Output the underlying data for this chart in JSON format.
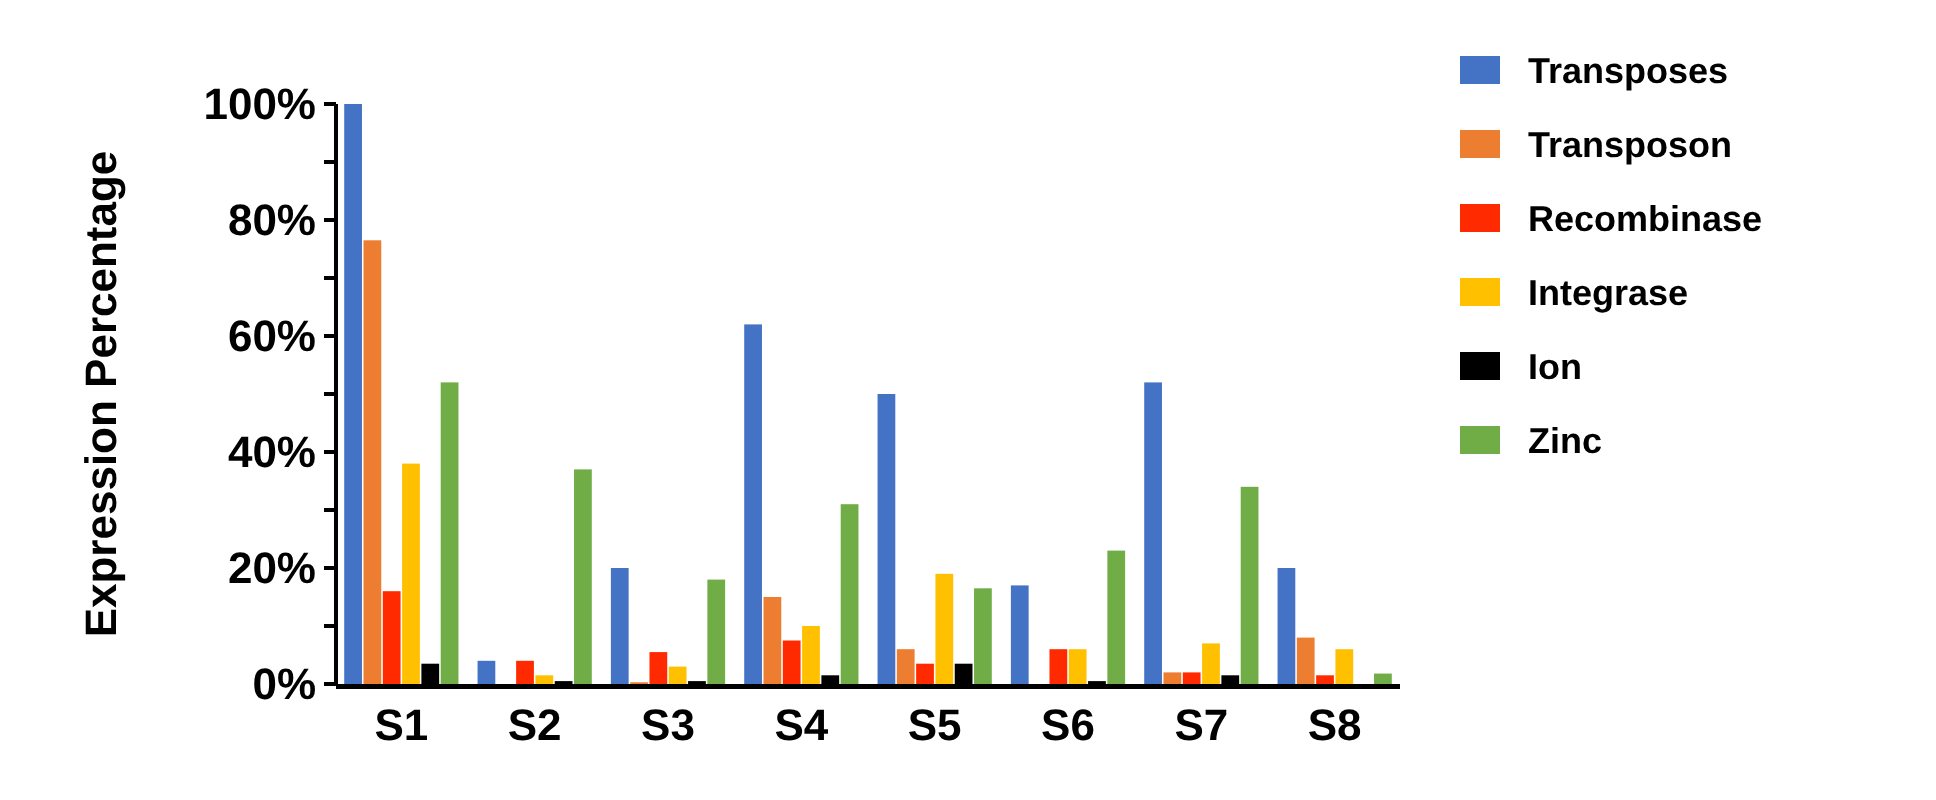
{
  "chart_data": {
    "type": "bar",
    "ylabel": "Expression Percentage",
    "categories": [
      "S1",
      "S2",
      "S3",
      "S4",
      "S5",
      "S6",
      "S7",
      "S8"
    ],
    "series": [
      {
        "name": "Transposes",
        "color": "#4472c4",
        "values": [
          100,
          4,
          20,
          62,
          50,
          17,
          52,
          20
        ]
      },
      {
        "name": "Transposon",
        "color": "#ed7d31",
        "values": [
          76.5,
          0,
          0.3,
          15,
          6,
          0,
          2,
          8
        ]
      },
      {
        "name": "Recombinase",
        "color": "#ff2a00",
        "values": [
          16,
          4,
          5.5,
          7.5,
          3.5,
          6,
          2,
          1.5
        ]
      },
      {
        "name": "Integrase",
        "color": "#ffc000",
        "values": [
          38,
          1.5,
          3,
          10,
          19,
          6,
          7,
          6
        ]
      },
      {
        "name": "Ion",
        "color": "#000000",
        "values": [
          3.5,
          0.5,
          0.5,
          1.5,
          3.5,
          0.5,
          1.5,
          0
        ]
      },
      {
        "name": "Zinc",
        "color": "#70ad47",
        "values": [
          52,
          37,
          18,
          31,
          16.5,
          23,
          34,
          1.8
        ]
      }
    ],
    "ylim": [
      0,
      100
    ],
    "yticks": [
      {
        "value": 0,
        "label": "0%"
      },
      {
        "value": 10,
        "label": null
      },
      {
        "value": 20,
        "label": "20%"
      },
      {
        "value": 30,
        "label": null
      },
      {
        "value": 40,
        "label": "40%"
      },
      {
        "value": 50,
        "label": null
      },
      {
        "value": 60,
        "label": "60%"
      },
      {
        "value": 70,
        "label": null
      },
      {
        "value": 80,
        "label": "80%"
      },
      {
        "value": 90,
        "label": null
      },
      {
        "value": 100,
        "label": "100%"
      }
    ],
    "legend": "top right",
    "grid": false
  }
}
